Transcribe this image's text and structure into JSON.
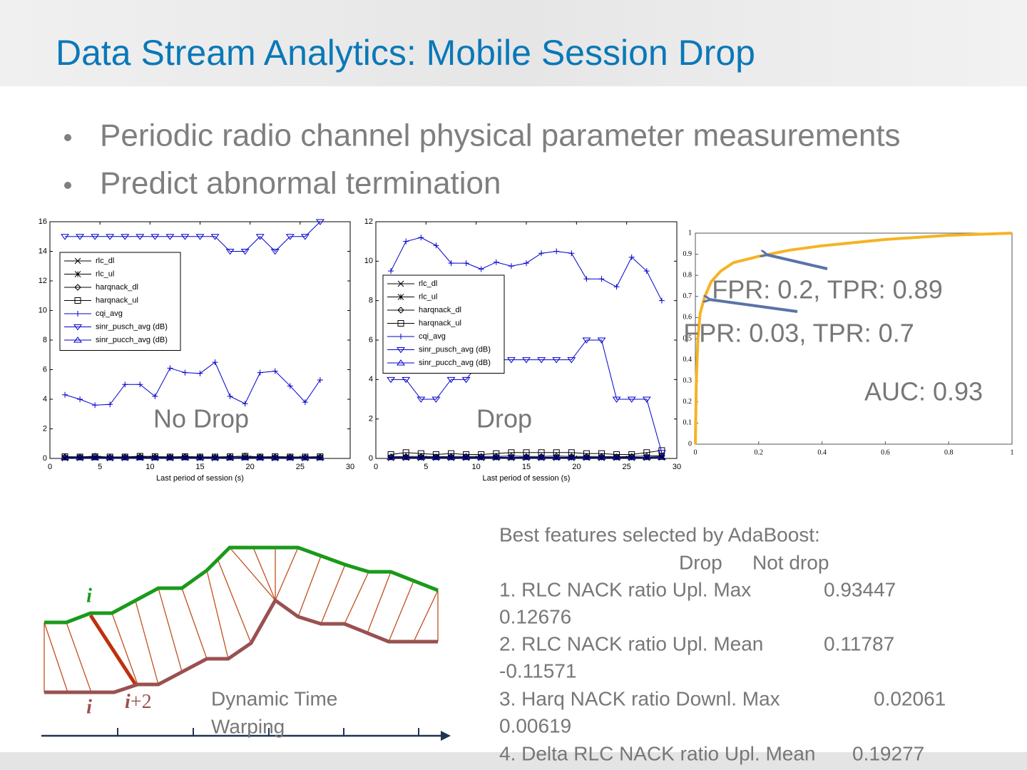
{
  "title": "Data Stream Analytics: Mobile Session Drop",
  "bullets": [
    "Periodic radio channel physical parameter measurements",
    "Predict abnormal termination"
  ],
  "plots": [
    {
      "label": "No Drop",
      "xlabel": "Last period of session (s)",
      "xlim": [
        0,
        30
      ],
      "xticks": [
        0,
        5,
        10,
        15,
        20,
        25,
        30
      ],
      "ylim": [
        0,
        16
      ],
      "yticks": [
        0,
        2,
        4,
        6,
        8,
        10,
        12,
        14,
        16
      ],
      "x": [
        1.5,
        3,
        4.5,
        6,
        7.5,
        9,
        10.5,
        12,
        13.5,
        15,
        16.5,
        18,
        19.5,
        21,
        22.5,
        24,
        25.5,
        27
      ],
      "series": [
        {
          "name": "rlc_dl",
          "color": "#000000",
          "marker": "x",
          "values": [
            0.02,
            0.03,
            0.05,
            0.02,
            0.03,
            0.04,
            0.03,
            0.02,
            0.04,
            0.03,
            0.02,
            0.03,
            0.05,
            0.03,
            0.02,
            0.03,
            0.02,
            0.03
          ]
        },
        {
          "name": "rlc_ul",
          "color": "#000000",
          "marker": "star",
          "values": [
            0.05,
            0.06,
            0.08,
            0.05,
            0.06,
            0.07,
            0.05,
            0.06,
            0.07,
            0.05,
            0.06,
            0.05,
            0.08,
            0.06,
            0.05,
            0.06,
            0.05,
            0.06
          ]
        },
        {
          "name": "harqnack_dl",
          "color": "#000000",
          "marker": "diamond",
          "values": [
            0.1,
            0.1,
            0.15,
            0.08,
            0.1,
            0.12,
            0.1,
            0.1,
            0.12,
            0.1,
            0.08,
            0.1,
            0.15,
            0.1,
            0.1,
            0.1,
            0.08,
            0.1
          ]
        },
        {
          "name": "harqnack_ul",
          "color": "#000000",
          "marker": "square",
          "values": [
            0.12,
            0.1,
            0.12,
            0.1,
            0.1,
            0.15,
            0.12,
            0.1,
            0.12,
            0.1,
            0.1,
            0.12,
            0.15,
            0.1,
            0.12,
            0.1,
            0.1,
            0.12
          ]
        },
        {
          "name": "cqi_avg",
          "color": "#0000cc",
          "marker": "plus",
          "values": [
            4.3,
            4.0,
            3.6,
            3.65,
            5.0,
            5.0,
            4.2,
            6.1,
            5.8,
            5.75,
            6.5,
            4.2,
            3.7,
            5.8,
            5.9,
            4.9,
            3.8,
            5.3
          ]
        },
        {
          "name": "sinr_pusch_avg (dB)",
          "color": "#0000cc",
          "marker": "tridown",
          "values": [
            15,
            15,
            15,
            15,
            15,
            15,
            15,
            15,
            15,
            15,
            15,
            14,
            14,
            15,
            14,
            15,
            15,
            16
          ]
        },
        {
          "name": "sinr_pucch_avg (dB)",
          "color": "#0000cc",
          "marker": "triup",
          "values": [
            0.05,
            0.05,
            0.05,
            0.05,
            0.05,
            0.05,
            0.05,
            0.05,
            0.05,
            0.05,
            0.05,
            0.05,
            0.05,
            0.05,
            0.05,
            0.05,
            0.05,
            0.05
          ]
        }
      ]
    },
    {
      "label": "Drop",
      "xlabel": "Last period of session (s)",
      "xlim": [
        0,
        30
      ],
      "xticks": [
        0,
        5,
        10,
        15,
        20,
        25,
        30
      ],
      "ylim": [
        0,
        12
      ],
      "yticks": [
        0,
        2,
        4,
        6,
        8,
        10,
        12
      ],
      "x": [
        1.5,
        3,
        4.5,
        6,
        7.5,
        9,
        10.5,
        12,
        13.5,
        15,
        16.5,
        18,
        19.5,
        21,
        22.5,
        24,
        25.5,
        27,
        28.5
      ],
      "series": [
        {
          "name": "rlc_dl",
          "color": "#000000",
          "marker": "x",
          "values": [
            0.02,
            0.03,
            0.02,
            0.03,
            0.02,
            0.03,
            0.02,
            0.03,
            0.02,
            0.03,
            0.02,
            0.03,
            0.02,
            0.03,
            0.02,
            0.03,
            0.02,
            0.03,
            0.05
          ]
        },
        {
          "name": "rlc_ul",
          "color": "#000000",
          "marker": "star",
          "values": [
            0.05,
            0.06,
            0.05,
            0.06,
            0.05,
            0.06,
            0.05,
            0.06,
            0.05,
            0.06,
            0.05,
            0.06,
            0.05,
            0.06,
            0.05,
            0.06,
            0.05,
            0.06,
            0.1
          ]
        },
        {
          "name": "harqnack_dl",
          "color": "#000000",
          "marker": "diamond",
          "values": [
            0.08,
            0.1,
            0.1,
            0.08,
            0.1,
            0.1,
            0.1,
            0.1,
            0.12,
            0.1,
            0.1,
            0.12,
            0.1,
            0.1,
            0.1,
            0.08,
            0.1,
            0.12,
            0.15
          ]
        },
        {
          "name": "harqnack_ul",
          "color": "#000000",
          "marker": "square",
          "values": [
            0.2,
            0.3,
            0.25,
            0.2,
            0.25,
            0.2,
            0.2,
            0.25,
            0.3,
            0.3,
            0.3,
            0.3,
            0.3,
            0.25,
            0.25,
            0.2,
            0.2,
            0.3,
            0.4
          ]
        },
        {
          "name": "cqi_avg",
          "color": "#0000cc",
          "marker": "plus",
          "values": [
            9.5,
            11.0,
            11.2,
            10.8,
            9.9,
            9.9,
            9.6,
            9.95,
            9.75,
            9.9,
            10.4,
            10.5,
            10.4,
            9.1,
            9.1,
            8.7,
            10.2,
            9.5,
            8.0
          ]
        },
        {
          "name": "sinr_pusch_avg (dB)",
          "color": "#0000cc",
          "marker": "tridown",
          "values": [
            4,
            4,
            3,
            3,
            4,
            4,
            5,
            5,
            5,
            5,
            5,
            5,
            5,
            6,
            6,
            3,
            3,
            3,
            0.3
          ]
        },
        {
          "name": "sinr_pucch_avg (dB)",
          "color": "#0000cc",
          "marker": "triup",
          "values": [
            0.05,
            0.05,
            0.05,
            0.05,
            0.05,
            0.05,
            0.05,
            0.05,
            0.05,
            0.05,
            0.05,
            0.05,
            0.05,
            0.05,
            0.05,
            0.05,
            0.05,
            0.05,
            0.05
          ]
        }
      ]
    }
  ],
  "roc": {
    "xlim": [
      0,
      1
    ],
    "xticks": [
      0,
      0.2,
      0.4,
      0.6,
      0.8,
      1
    ],
    "ylim": [
      0,
      1
    ],
    "yticks": [
      0,
      0.1,
      0.2,
      0.3,
      0.4,
      0.5,
      0.6,
      0.7,
      0.8,
      0.9,
      1
    ],
    "color": "#f5b324",
    "fpr": [
      0,
      0.003,
      0.008,
      0.015,
      0.03,
      0.05,
      0.08,
      0.12,
      0.2,
      0.3,
      0.4,
      0.6,
      0.8,
      1
    ],
    "tpr": [
      0,
      0.3,
      0.5,
      0.62,
      0.7,
      0.77,
      0.82,
      0.86,
      0.89,
      0.92,
      0.94,
      0.97,
      0.99,
      1
    ],
    "annotations": [
      "FPR: 0.2, TPR: 0.89",
      "FPR: 0.03, TPR: 0.7",
      "AUC: 0.93"
    ]
  },
  "dtw": {
    "top_label": "i",
    "bottom_label": "i",
    "shift_label": {
      "italic": "i",
      "rest": "+2"
    },
    "caption": [
      "Dynamic Time",
      "Warping"
    ]
  },
  "features": {
    "heading": "Best features selected by AdaBoost:",
    "columns": [
      "Drop",
      "Not drop"
    ],
    "items": [
      {
        "name": "1. RLC NACK ratio Upl. Max",
        "drop": 0.93447,
        "not_drop": 0.12676
      },
      {
        "name": "2. RLC NACK ratio Upl. Mean",
        "drop": 0.11787,
        "not_drop": -0.11571
      },
      {
        "name": "3. Harq NACK ratio Downl. Max",
        "drop": 0.02061,
        "not_drop": 0.00619
      },
      {
        "name": "4. Delta RLC NACK ratio Upl. Mean",
        "drop": 0.19277
      }
    ]
  }
}
